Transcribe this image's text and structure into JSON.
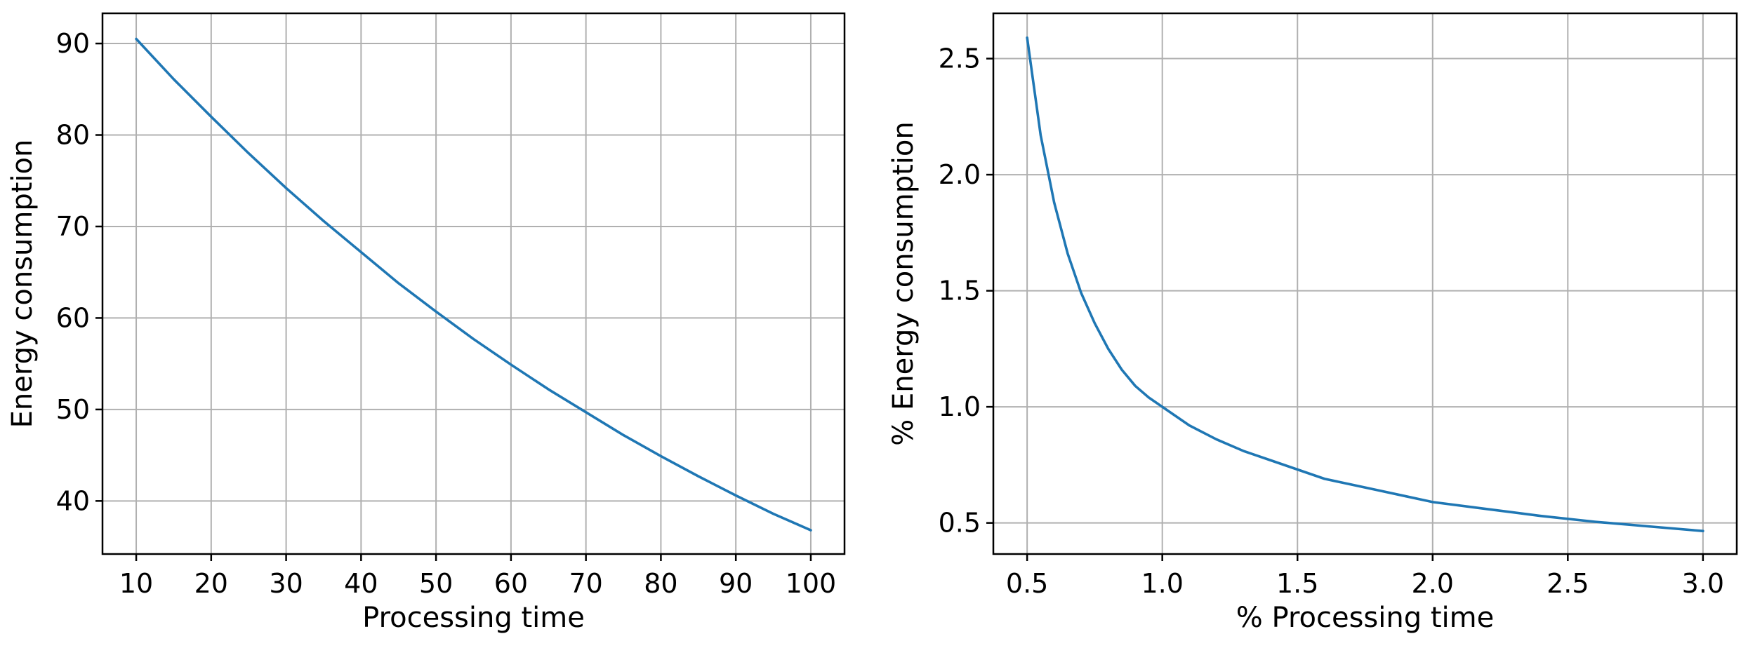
{
  "colors": {
    "series": "#1f77b4",
    "grid": "#b0b0b0"
  },
  "chart_data": [
    {
      "type": "line",
      "title": "",
      "xlabel": "Processing time",
      "ylabel": "Energy consumption",
      "xlim": [
        5.5,
        104.5
      ],
      "ylim": [
        34.2,
        93.3
      ],
      "xticks": [
        10,
        20,
        30,
        40,
        50,
        60,
        70,
        80,
        90,
        100
      ],
      "yticks": [
        40,
        50,
        60,
        70,
        80,
        90
      ],
      "grid": true,
      "series": [
        {
          "x": [
            10,
            15,
            20,
            25,
            30,
            35,
            40,
            45,
            50,
            55,
            60,
            65,
            70,
            75,
            80,
            85,
            90,
            95,
            100
          ],
          "y": [
            90.5,
            86.1,
            82.0,
            78.0,
            74.2,
            70.6,
            67.2,
            63.8,
            60.7,
            57.7,
            54.9,
            52.2,
            49.7,
            47.2,
            44.9,
            42.7,
            40.6,
            38.6,
            36.8
          ]
        }
      ]
    },
    {
      "type": "line",
      "title": "",
      "xlabel": "% Processing time",
      "ylabel": "% Energy consumption",
      "xlim": [
        0.375,
        3.125
      ],
      "ylim": [
        0.366,
        2.695
      ],
      "xticks": [
        0.5,
        1.0,
        1.5,
        2.0,
        2.5,
        3.0
      ],
      "xtick_labels": [
        "0.5",
        "1.0",
        "1.5",
        "2.0",
        "2.5",
        "3.0"
      ],
      "yticks": [
        0.5,
        1.0,
        1.5,
        2.0,
        2.5
      ],
      "ytick_labels": [
        "0.5",
        "1.0",
        "1.5",
        "2.0",
        "2.5"
      ],
      "grid": true,
      "series": [
        {
          "x": [
            0.5,
            0.55,
            0.6,
            0.65,
            0.7,
            0.75,
            0.8,
            0.85,
            0.9,
            0.95,
            1.0,
            1.1,
            1.2,
            1.3,
            1.4,
            1.5,
            1.6,
            1.7,
            1.8,
            1.9,
            2.0,
            2.2,
            2.4,
            2.6,
            2.8,
            3.0
          ],
          "y": [
            2.59,
            2.17,
            1.88,
            1.66,
            1.49,
            1.36,
            1.25,
            1.16,
            1.09,
            1.04,
            1.0,
            0.92,
            0.86,
            0.81,
            0.77,
            0.73,
            0.69,
            0.665,
            0.64,
            0.615,
            0.59,
            0.56,
            0.53,
            0.505,
            0.485,
            0.465
          ]
        }
      ]
    }
  ]
}
